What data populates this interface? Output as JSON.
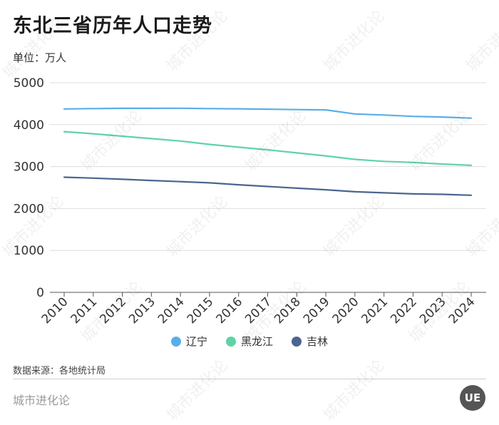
{
  "title": "东北三省历年人口走势",
  "unit_label": "单位：万人",
  "source": "数据来源：各地统计局",
  "brand": "城市进化论",
  "logo_text": "UE",
  "watermark_text": "城市进化论",
  "chart_data": {
    "type": "line",
    "title": "东北三省历年人口走势",
    "x": [
      "2010",
      "2011",
      "2012",
      "2013",
      "2014",
      "2015",
      "2016",
      "2017",
      "2018",
      "2019",
      "2020",
      "2021",
      "2022",
      "2023",
      "2024"
    ],
    "yticks": [
      "0",
      "1000",
      "2000",
      "3000",
      "4000",
      "5000"
    ],
    "ylim": [
      0,
      5000
    ],
    "grid": true,
    "legend_position": "bottom",
    "series": [
      {
        "name": "辽宁",
        "color": "#5aaee8",
        "values": [
          4375,
          4383,
          4389,
          4390,
          4391,
          4382,
          4377,
          4369,
          4359,
          4352,
          4255,
          4229,
          4197,
          4182,
          4155
        ]
      },
      {
        "name": "黑龙江",
        "color": "#5fd3a6",
        "values": [
          3833,
          3782,
          3724,
          3666,
          3608,
          3529,
          3463,
          3399,
          3327,
          3255,
          3171,
          3125,
          3099,
          3062,
          3029
        ]
      },
      {
        "name": "吉林",
        "color": "#4a6590",
        "values": [
          2747,
          2725,
          2698,
          2668,
          2642,
          2613,
          2567,
          2526,
          2484,
          2448,
          2399,
          2375,
          2348,
          2339,
          2317
        ]
      }
    ]
  }
}
